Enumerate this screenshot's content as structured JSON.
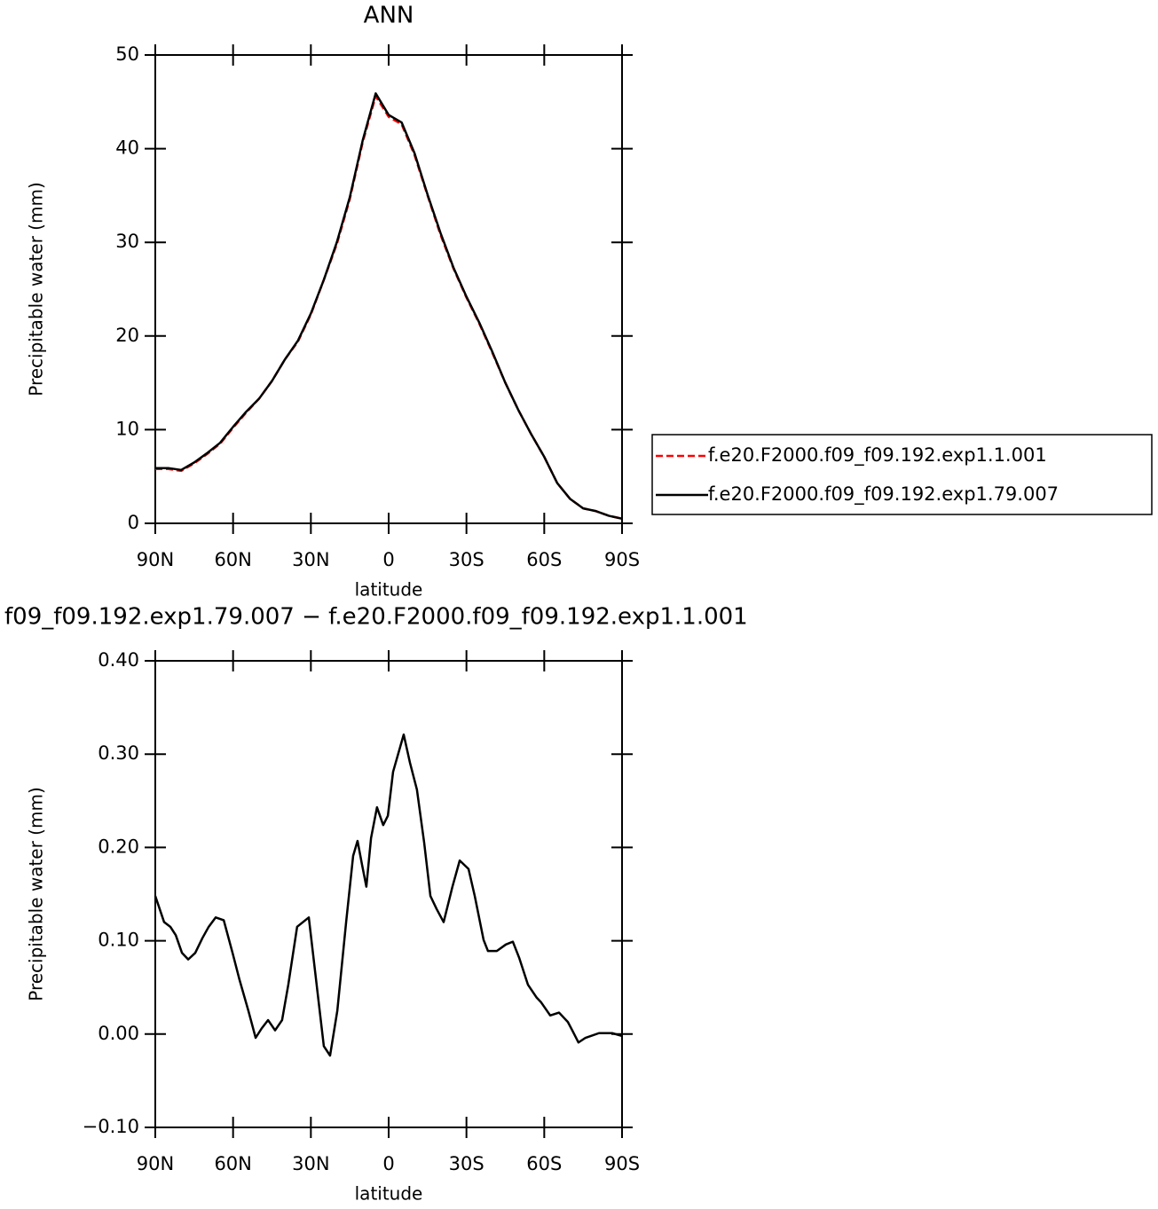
{
  "chart_data": [
    {
      "type": "line",
      "title": "ANN",
      "xlabel": "latitude",
      "ylabel": "Precipitable water (mm)",
      "x": [
        90,
        85,
        80,
        75,
        70,
        65,
        60,
        55,
        50,
        45,
        40,
        35,
        30,
        25,
        20,
        15,
        10,
        5,
        0,
        -5,
        -10,
        -15,
        -20,
        -25,
        -30,
        -35,
        -40,
        -45,
        -50,
        -55,
        -60,
        -65,
        -70,
        -75,
        -80,
        -85,
        -90
      ],
      "series": [
        {
          "name": "f.e20.F2000.f09_f09.192.exp1.1.001",
          "color": "#ff0000",
          "line_style": "dashed",
          "values": [
            5.8,
            5.8,
            5.6,
            6.4,
            7.4,
            8.5,
            10.2,
            11.8,
            13.3,
            15.2,
            17.5,
            19.4,
            22.3,
            26.0,
            29.8,
            34.6,
            40.7,
            45.6,
            43.4,
            42.6,
            39.3,
            35.0,
            30.8,
            27.2,
            24.1,
            21.3,
            18.2,
            15.0,
            12.1,
            9.5,
            7.1,
            4.3,
            2.6,
            1.6,
            1.3,
            0.8,
            0.5
          ]
        },
        {
          "name": "f.e20.F2000.f09_f09.192.exp1.79.007",
          "color": "#000000",
          "line_style": "solid",
          "values": [
            5.9,
            5.9,
            5.7,
            6.5,
            7.5,
            8.6,
            10.3,
            11.9,
            13.3,
            15.2,
            17.5,
            19.5,
            22.4,
            26.0,
            30.0,
            34.8,
            40.9,
            45.9,
            43.6,
            42.8,
            39.5,
            35.1,
            31.0,
            27.3,
            24.2,
            21.4,
            18.3,
            15.0,
            12.1,
            9.5,
            7.1,
            4.3,
            2.6,
            1.6,
            1.3,
            0.8,
            0.5
          ]
        }
      ],
      "xlim": [
        90,
        -90
      ],
      "xticks": [
        {
          "value": 90,
          "label": "90N"
        },
        {
          "value": 60,
          "label": "60N"
        },
        {
          "value": 30,
          "label": "30N"
        },
        0,
        {
          "value": -30,
          "label": "30S"
        },
        {
          "value": -60,
          "label": "60S"
        },
        {
          "value": -90,
          "label": "90S"
        }
      ],
      "ylim": [
        0,
        50
      ],
      "yticks": [
        0,
        10,
        20,
        30,
        40,
        50
      ],
      "legend": "outside-right"
    },
    {
      "type": "line",
      "title": "f09_f09.192.exp1.79.007 − f.e20.F2000.f09_f09.192.exp1.1.001",
      "xlabel": "latitude",
      "ylabel": "Precipitable water (mm)",
      "x": [
        90.0,
        86.6,
        84.2,
        82.1,
        79.7,
        77.3,
        74.6,
        71.8,
        69.4,
        66.7,
        63.6,
        60.2,
        57.5,
        54.1,
        51.3,
        49.0,
        46.5,
        43.8,
        41.1,
        38.7,
        35.3,
        30.8,
        27.4,
        25.0,
        22.6,
        19.8,
        16.4,
        13.7,
        12.0,
        10.3,
        8.6,
        6.8,
        4.5,
        2.1,
        0.3,
        -1.7,
        -5.8,
        -8.2,
        -10.9,
        -13.7,
        -16.1,
        -18.5,
        -21.2,
        -24.6,
        -27.4,
        -30.8,
        -33.2,
        -36.6,
        -38.3,
        -41.7,
        -45.2,
        -47.9,
        -50.3,
        -53.7,
        -57.1,
        -58.8,
        -62.3,
        -65.7,
        -69.1,
        -70.8,
        -73.2,
        -75.9,
        -81.1,
        -86.2,
        -90.0
      ],
      "series": [
        {
          "color": "#000000",
          "line_style": "solid",
          "values": [
            0.148,
            0.12,
            0.115,
            0.106,
            0.087,
            0.08,
            0.087,
            0.103,
            0.115,
            0.125,
            0.122,
            0.087,
            0.058,
            0.025,
            -0.004,
            0.006,
            0.015,
            0.004,
            0.015,
            0.053,
            0.115,
            0.125,
            0.044,
            -0.013,
            -0.023,
            0.025,
            0.12,
            0.191,
            0.207,
            0.182,
            0.158,
            0.21,
            0.243,
            0.224,
            0.234,
            0.281,
            0.321,
            0.291,
            0.262,
            0.205,
            0.148,
            0.134,
            0.12,
            0.158,
            0.186,
            0.177,
            0.148,
            0.101,
            0.089,
            0.089,
            0.096,
            0.099,
            0.082,
            0.053,
            0.039,
            0.034,
            0.02,
            0.023,
            0.013,
            0.004,
            -0.009,
            -0.004,
            0.001,
            0.001,
            -0.002
          ]
        }
      ],
      "xlim": [
        90,
        -90
      ],
      "xticks": [
        {
          "value": 90,
          "label": "90N"
        },
        {
          "value": 60,
          "label": "60N"
        },
        {
          "value": 30,
          "label": "30N"
        },
        0,
        {
          "value": -30,
          "label": "30S"
        },
        {
          "value": -60,
          "label": "60S"
        },
        {
          "value": -90,
          "label": "90S"
        }
      ],
      "ylim": [
        -0.1,
        0.4
      ],
      "yticks": [
        {
          "value": -0.1,
          "label": "−0.10"
        },
        {
          "value": 0,
          "label": "0.00"
        },
        {
          "value": 0.1,
          "label": "0.10"
        },
        {
          "value": 0.2,
          "label": "0.20"
        },
        {
          "value": 0.3,
          "label": "0.30"
        },
        {
          "value": 0.4,
          "label": "0.40"
        }
      ]
    }
  ]
}
